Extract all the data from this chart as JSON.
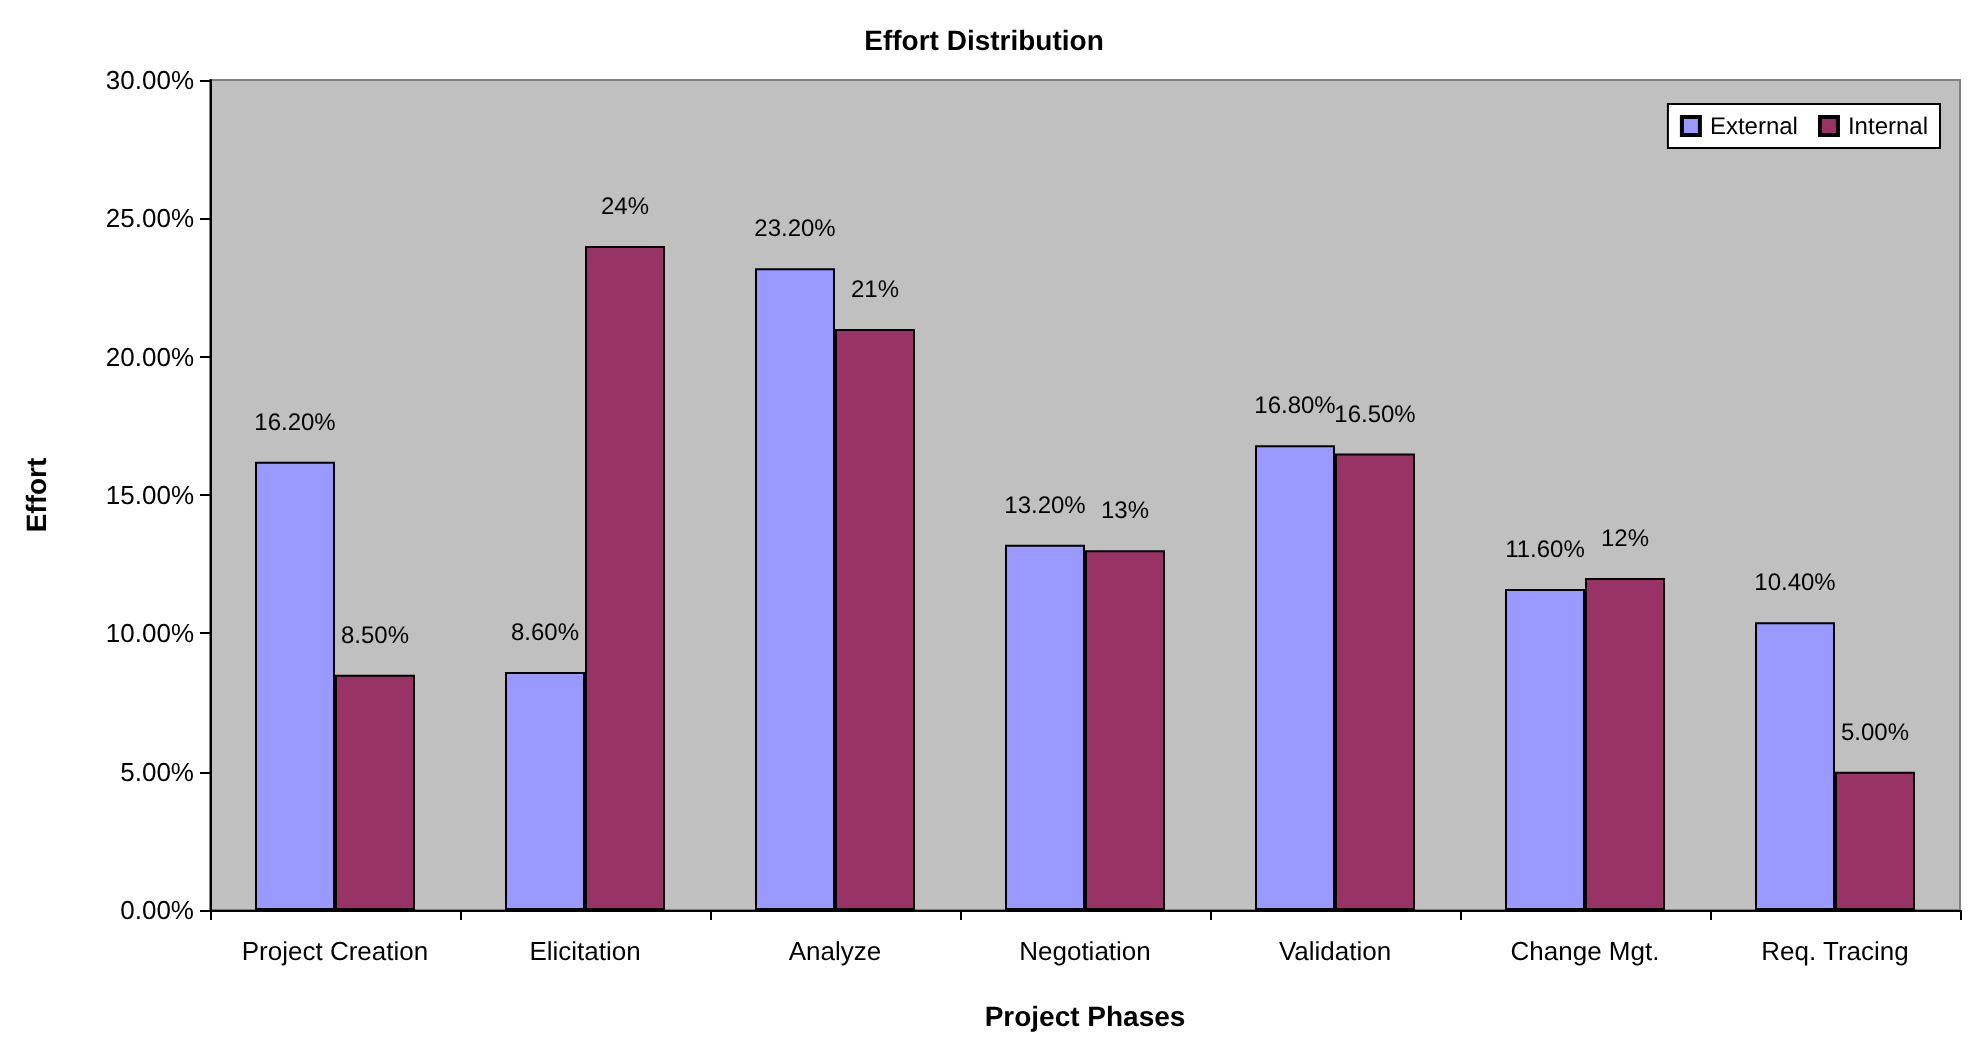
{
  "chart_data": {
    "type": "bar",
    "title": "Effort Distribution",
    "xlabel": "Project Phases",
    "ylabel": "Effort",
    "categories": [
      "Project Creation",
      "Elicitation",
      "Analyze",
      "Negotiation",
      "Validation",
      "Change Mgt.",
      "Req. Tracing"
    ],
    "series": [
      {
        "name": "External",
        "color": "#9999ff",
        "values": [
          16.2,
          8.6,
          23.2,
          13.2,
          16.8,
          11.6,
          10.4
        ],
        "value_labels": [
          "16.20%",
          "8.60%",
          "23.20%",
          "13.20%",
          "16.80%",
          "11.60%",
          "10.40%"
        ]
      },
      {
        "name": "Internal",
        "color": "#993366",
        "values": [
          8.5,
          24,
          21,
          13,
          16.5,
          12,
          5.0
        ],
        "value_labels": [
          "8.50%",
          "24%",
          "21%",
          "13%",
          "16.50%",
          "12%",
          "5.00%"
        ]
      }
    ],
    "ylim": [
      0,
      30
    ],
    "yticks": [
      {
        "value": 0,
        "label": "0.00%"
      },
      {
        "value": 5,
        "label": "5.00%"
      },
      {
        "value": 10,
        "label": "10.00%"
      },
      {
        "value": 15,
        "label": "15.00%"
      },
      {
        "value": 20,
        "label": "20.00%"
      },
      {
        "value": 25,
        "label": "25.00%"
      },
      {
        "value": 30,
        "label": "30.00%"
      }
    ],
    "grid": false,
    "legend": "top right"
  }
}
